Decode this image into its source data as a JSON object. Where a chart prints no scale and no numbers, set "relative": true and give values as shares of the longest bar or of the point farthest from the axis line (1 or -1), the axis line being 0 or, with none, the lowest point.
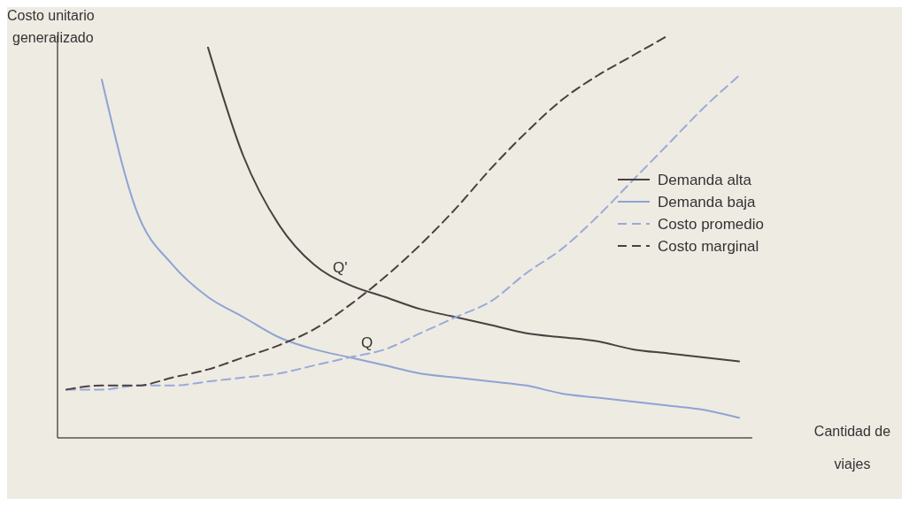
{
  "chart_data": {
    "type": "line",
    "relative": true,
    "ylabel": "Costo unitario generalizado",
    "xlabel": "Cantidad de viajes",
    "legend": "right",
    "categories": [
      null,
      null,
      null,
      null,
      null,
      null,
      null,
      null,
      null,
      null,
      null,
      null,
      null,
      null,
      null,
      null,
      null,
      null,
      null,
      null
    ],
    "series": [
      {
        "name": "Demanda alta",
        "color": "#4a4040",
        "line_style": "solid",
        "values": [
          null,
          null,
          null,
          null,
          0.97,
          0.7,
          0.53,
          0.43,
          0.38,
          0.35,
          0.32,
          0.3,
          0.28,
          0.26,
          0.25,
          0.24,
          0.22,
          0.21,
          0.2,
          0.19
        ]
      },
      {
        "name": "Demanda baja",
        "color": "#8fa3d3",
        "line_style": "solid",
        "values": [
          null,
          0.89,
          0.56,
          0.43,
          0.35,
          0.3,
          0.25,
          0.22,
          0.2,
          0.18,
          0.16,
          0.15,
          0.14,
          0.13,
          0.11,
          0.1,
          0.09,
          0.08,
          0.07,
          0.05
        ]
      },
      {
        "name": "Costo promedio",
        "color": "#9aaad8",
        "line_style": "dashed",
        "values": [
          0.12,
          0.12,
          0.13,
          0.13,
          0.14,
          0.15,
          0.16,
          0.18,
          0.2,
          0.22,
          0.26,
          0.3,
          0.34,
          0.41,
          0.47,
          0.55,
          0.64,
          0.73,
          0.82,
          0.9
        ]
      },
      {
        "name": "Costo marginal",
        "color": "#4a4040",
        "line_style": "dashed",
        "values": [
          0.12,
          0.13,
          0.13,
          0.15,
          0.17,
          0.2,
          0.23,
          0.27,
          0.33,
          0.4,
          0.48,
          0.57,
          0.67,
          0.76,
          0.84,
          0.9,
          0.95,
          1.0,
          null,
          null
        ]
      }
    ],
    "annotations": [
      "Q",
      "Q'"
    ]
  }
}
